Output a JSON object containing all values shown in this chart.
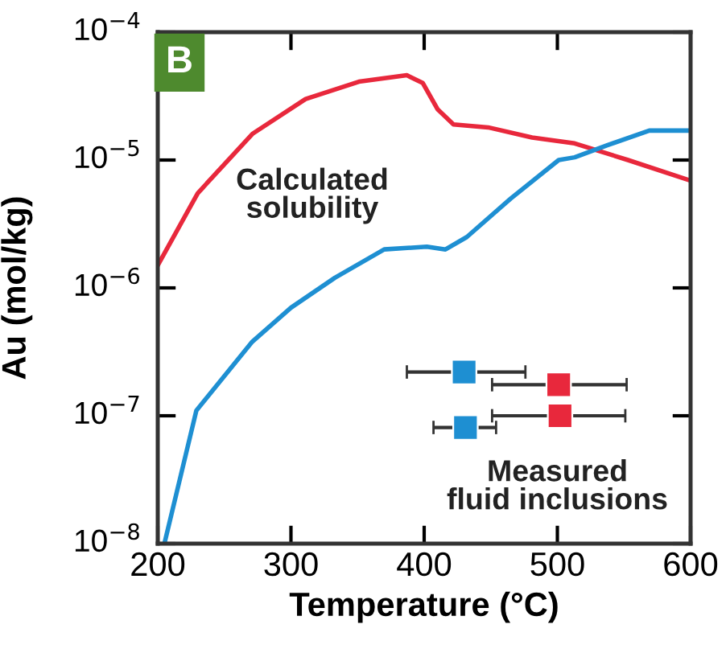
{
  "chart_data": {
    "type": "line",
    "xlabel": "Temperature (°C)",
    "ylabel": "Au (mol/kg)",
    "log": "y",
    "xlim": [
      200,
      600
    ],
    "xticks": [
      200,
      300,
      400,
      500,
      600
    ],
    "ylim": [
      1e-08,
      0.0001
    ],
    "yticks": [
      {
        "value": 1e-08,
        "label": "10$^{−8}$"
      },
      {
        "value": 1e-07,
        "label": "10$^{−7}$"
      },
      {
        "value": 1e-06,
        "label": "10$^{−6}$"
      },
      {
        "value": 1e-05,
        "label": "10$^{−5}$"
      },
      {
        "value": 0.0001,
        "label": "10$^{−4}$"
      }
    ],
    "grid": false,
    "legend": false,
    "annotations": [
      "B",
      "Calculated\nsolubility",
      "Measured\nfluid inclusions"
    ],
    "series": [
      {
        "color": "#e8283c",
        "x": [
          200,
          230,
          271,
          311,
          351,
          387,
          399,
          410,
          422,
          448,
          481,
          513,
          553,
          600
        ],
        "values": [
          1.5e-06,
          5.5e-06,
          1.6e-05,
          3e-05,
          4.1e-05,
          4.6e-05,
          4e-05,
          2.5e-05,
          1.9e-05,
          1.8e-05,
          1.5e-05,
          1.35e-05,
          1e-05,
          6.9e-06
        ]
      },
      {
        "color": "#1e8fd2",
        "x": [
          205,
          229,
          271,
          300,
          333,
          370,
          402,
          416,
          432,
          465,
          501,
          513,
          537,
          569,
          600
        ],
        "values": [
          1e-08,
          1.1e-07,
          3.8e-07,
          7e-07,
          1.2e-06,
          2e-06,
          2.1e-06,
          2e-06,
          2.5e-06,
          5e-06,
          1e-05,
          1.05e-05,
          1.3e-05,
          1.7e-05,
          1.7e-05
        ]
      },
      {
        "type": "scatter",
        "marker": "square",
        "color": "#1e8fd2",
        "x": [
          430,
          431
        ],
        "values": [
          2.2e-07,
          8.1e-08
        ],
        "xerrors": [
          [
            387,
            476
          ],
          [
            407,
            454
          ]
        ]
      },
      {
        "type": "scatter",
        "marker": "square",
        "color": "#e8283c",
        "x": [
          501,
          502
        ],
        "values": [
          1.75e-07,
          1e-07
        ],
        "xerrors": [
          [
            451,
            552
          ],
          [
            451,
            551
          ]
        ]
      }
    ]
  }
}
